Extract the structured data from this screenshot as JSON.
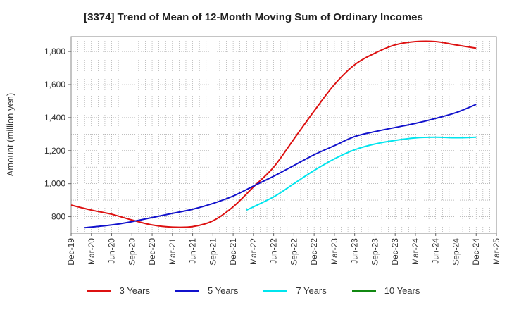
{
  "chart_data": {
    "type": "line",
    "title": "[3374]  Trend of Mean of 12-Month Moving Sum of Ordinary Incomes",
    "xlabel": "",
    "ylabel": "Amount (million yen)",
    "ylim": [
      700,
      1890
    ],
    "yticks": [
      800,
      1000,
      1200,
      1400,
      1600,
      1800
    ],
    "ytick_labels": [
      "800",
      "1,000",
      "1,200",
      "1,400",
      "1,600",
      "1,800"
    ],
    "xlim": [
      0,
      63
    ],
    "xticks": [
      0,
      3,
      6,
      9,
      12,
      15,
      18,
      21,
      24,
      27,
      30,
      33,
      36,
      39,
      42,
      45,
      48,
      51,
      54,
      57,
      60,
      63
    ],
    "xtick_labels": [
      "Dec-19",
      "Mar-20",
      "Jun-20",
      "Sep-20",
      "Dec-20",
      "Mar-21",
      "Jun-21",
      "Sep-21",
      "Dec-21",
      "Mar-22",
      "Jun-22",
      "Sep-22",
      "Dec-22",
      "Mar-23",
      "Jun-23",
      "Sep-23",
      "Dec-23",
      "Mar-24",
      "Jun-24",
      "Sep-24",
      "Dec-24",
      "Mar-25"
    ],
    "grid": true,
    "legend_position": "bottom",
    "series": [
      {
        "name": "3 Years",
        "color": "#dd1111",
        "x": [
          0,
          3,
          6,
          9,
          12,
          15,
          18,
          21,
          24,
          27,
          30,
          33,
          36,
          39,
          42,
          45,
          48,
          51,
          54,
          57,
          60
        ],
        "values": [
          870,
          840,
          815,
          780,
          750,
          737,
          740,
          775,
          860,
          980,
          1100,
          1270,
          1440,
          1600,
          1720,
          1790,
          1840,
          1860,
          1860,
          1840,
          1820
        ]
      },
      {
        "name": "5 Years",
        "color": "#1111cc",
        "x": [
          2,
          6,
          9,
          12,
          15,
          18,
          21,
          24,
          27,
          30,
          33,
          36,
          39,
          42,
          45,
          48,
          51,
          54,
          57,
          60
        ],
        "values": [
          733,
          750,
          770,
          795,
          820,
          845,
          880,
          925,
          985,
          1045,
          1110,
          1175,
          1230,
          1285,
          1315,
          1340,
          1365,
          1395,
          1430,
          1480
        ]
      },
      {
        "name": "7 Years",
        "color": "#00e5ee",
        "x": [
          26,
          30,
          33,
          36,
          39,
          42,
          45,
          48,
          51,
          54,
          57,
          60
        ],
        "values": [
          840,
          920,
          1000,
          1080,
          1150,
          1205,
          1240,
          1262,
          1277,
          1281,
          1278,
          1281
        ]
      },
      {
        "name": "10 Years",
        "color": "#118811",
        "x": [],
        "values": []
      }
    ]
  }
}
